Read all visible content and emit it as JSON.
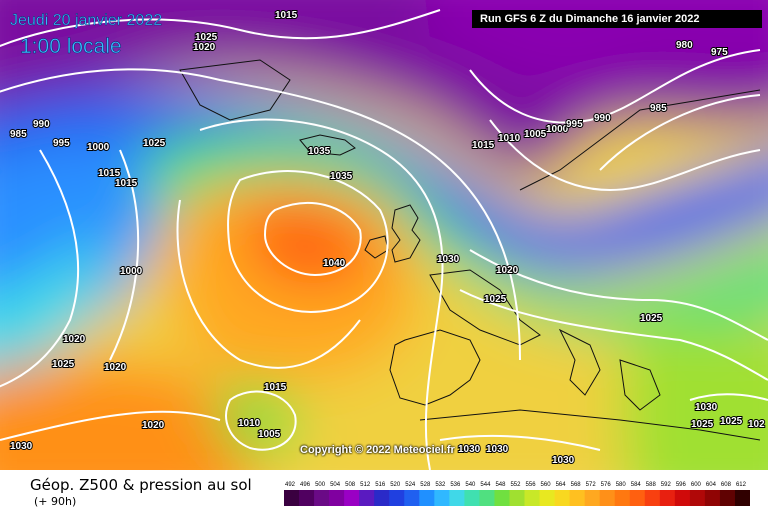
{
  "header": {
    "date": "Jeudi 20 janvier 2022",
    "local_time": "1:00 locale",
    "run": "Run GFS 6 Z du Dimanche 16 janvier 2022"
  },
  "map": {
    "pressure_labels": [
      "1015",
      "1025",
      "1020",
      "990",
      "985",
      "995",
      "1000",
      "1015",
      "1015",
      "1025",
      "1035",
      "1035",
      "1040",
      "1000",
      "1020",
      "1025",
      "1020",
      "1020",
      "1015",
      "1010",
      "1005",
      "1030",
      "1030",
      "1030",
      "1030",
      "1030",
      "1020",
      "1025",
      "1015",
      "1010",
      "1005",
      "1000",
      "995",
      "990",
      "985",
      "980",
      "975",
      "1025",
      "1030",
      "1025",
      "1025",
      "102"
    ],
    "copyright": "Copyright © 2022 Meteociel.fr"
  },
  "legend": {
    "title": "Géop. Z500 & pression au sol",
    "subtitle": "(+ 90h)",
    "scale_values": [
      "492",
      "496",
      "500",
      "504",
      "508",
      "512",
      "516",
      "520",
      "524",
      "528",
      "532",
      "536",
      "540",
      "544",
      "548",
      "552",
      "556",
      "560",
      "564",
      "568",
      "572",
      "576",
      "580",
      "584",
      "588",
      "592",
      "596",
      "600",
      "604",
      "608",
      "612"
    ],
    "scale_colors": [
      "#3a0040",
      "#500060",
      "#6a0a86",
      "#8000a0",
      "#9a00c4",
      "#5a1ac0",
      "#2a2ac8",
      "#2040e0",
      "#2060f0",
      "#2090ff",
      "#30b8ff",
      "#40d8e8",
      "#40e0b0",
      "#50e080",
      "#70e040",
      "#a0e030",
      "#c8e828",
      "#e8e820",
      "#f8d820",
      "#ffc020",
      "#ffa820",
      "#ff9018",
      "#ff7810",
      "#ff6010",
      "#f84010",
      "#e82010",
      "#d00a0a",
      "#b00808",
      "#900404",
      "#600202",
      "#300000"
    ]
  }
}
